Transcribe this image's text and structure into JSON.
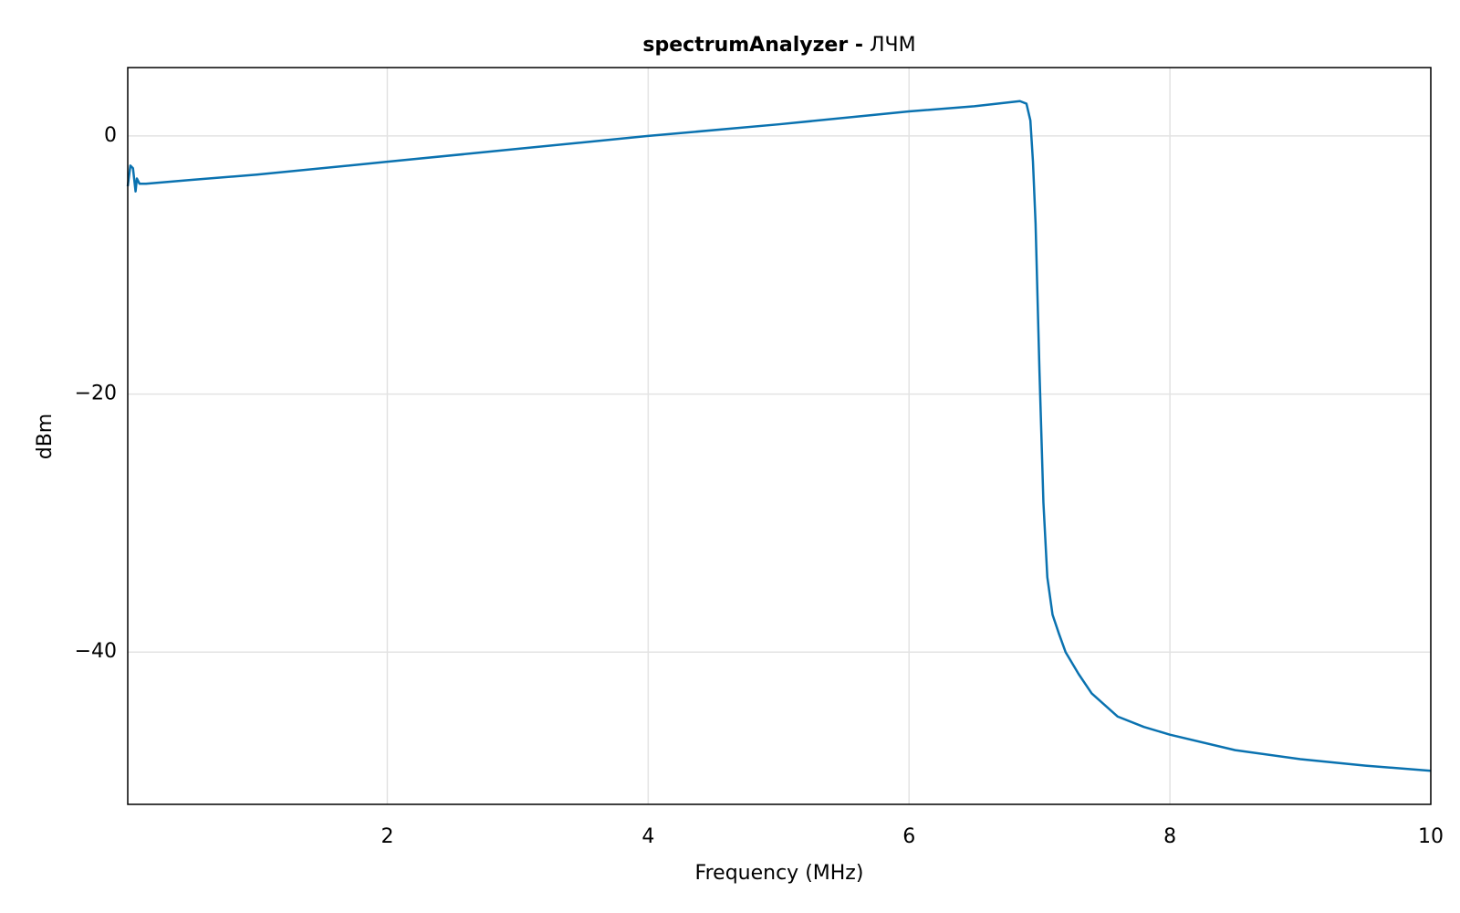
{
  "chart_data": {
    "type": "line",
    "title": "spectrumAnalyzer -",
    "subtitle": "ЛЧМ",
    "x_label": "Frequency (MHz)",
    "y_label": "dBm",
    "x": [
      0.01,
      0.03,
      0.05,
      0.06,
      0.07,
      0.08,
      0.1,
      0.15,
      0.5,
      1,
      2,
      3,
      4,
      5,
      6,
      6.5,
      6.85,
      6.9,
      6.93,
      6.95,
      6.97,
      7.0,
      7.03,
      7.06,
      7.1,
      7.15,
      7.2,
      7.3,
      7.4,
      7.6,
      7.8,
      8,
      8.5,
      9,
      9.5,
      10
    ],
    "series": [
      {
        "color": "#0a72b0",
        "values": [
          -3.9,
          -2.3,
          -2.5,
          -3.4,
          -4.3,
          -3.3,
          -3.7,
          -3.7,
          -3.4,
          -3.0,
          -2.0,
          -1.0,
          0,
          0.9,
          1.9,
          2.3,
          2.7,
          2.5,
          1.2,
          -2,
          -6.8,
          -18.3,
          -28.4,
          -34.2,
          -37.1,
          -38.6,
          -40,
          -41.7,
          -43.2,
          -45,
          -45.8,
          -46.4,
          -47.6,
          -48.3,
          -48.8,
          -49.2
        ]
      }
    ],
    "xlim": [
      0.01,
      10
    ],
    "xticks": [
      2,
      4,
      6,
      8,
      10
    ],
    "ylim": [
      -51.8,
      5.3
    ],
    "yticks": [
      {
        "value": -40,
        "label": "−40"
      },
      {
        "value": -20,
        "label": "−20"
      },
      0
    ],
    "grid": true
  }
}
